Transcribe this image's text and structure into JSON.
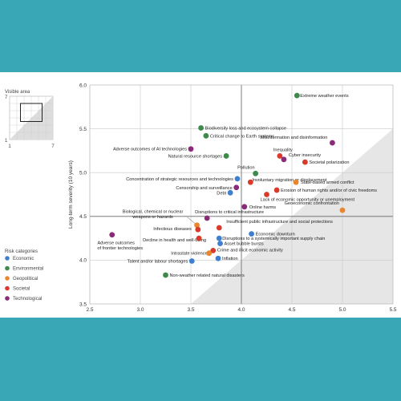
{
  "chart_data": {
    "type": "scatter",
    "title": "",
    "xlabel": "",
    "ylabel": "Long-term severity (10 years)",
    "xlim": [
      2.5,
      5.5
    ],
    "ylim": [
      3.5,
      6.0
    ],
    "xticks": [
      "2.5",
      "3.0",
      "3.5",
      "4.0",
      "4.5",
      "5.0",
      "5.5"
    ],
    "yticks": [
      "3.5",
      "4.0",
      "4.5",
      "5.0",
      "5.5",
      "6.0"
    ],
    "grid": true,
    "legend_position": "left",
    "legend_title": "Risk categories",
    "categories": [
      {
        "key": "economic",
        "name": "Economic",
        "color": "#3f7fcf"
      },
      {
        "key": "environmental",
        "name": "Environmental",
        "color": "#3d8a4a"
      },
      {
        "key": "geopolitical",
        "name": "Geopolitical",
        "color": "#e8872e"
      },
      {
        "key": "societal",
        "name": "Societal",
        "color": "#d93a2b"
      },
      {
        "key": "technological",
        "name": "Technological",
        "color": "#8a2a78"
      }
    ],
    "visible_area": {
      "title": "Visible area",
      "axis_min": "1",
      "axis_max": "7"
    },
    "points": [
      {
        "label": "Extreme weather events",
        "x": 4.55,
        "y": 5.88,
        "category": "environmental"
      },
      {
        "label": "Biodiversity loss and ecosystem collapse",
        "x": 3.6,
        "y": 5.51,
        "category": "environmental"
      },
      {
        "label": "Critical change to Earth systems",
        "x": 3.65,
        "y": 5.42,
        "category": "environmental"
      },
      {
        "label": "Misinformation and disinformation",
        "x": 4.9,
        "y": 5.34,
        "category": "technological"
      },
      {
        "label": "Adverse outcomes of AI technologies",
        "x": 3.5,
        "y": 5.27,
        "category": "technological"
      },
      {
        "label": "Cyber insecurity",
        "x": 4.42,
        "y": 5.15,
        "category": "technological"
      },
      {
        "label": "Inequality",
        "x": 4.38,
        "y": 5.19,
        "category": "societal"
      },
      {
        "label": "Societal polarization",
        "x": 4.63,
        "y": 5.12,
        "category": "societal"
      },
      {
        "label": "Natural resource shortages",
        "x": 3.85,
        "y": 5.19,
        "category": "environmental"
      },
      {
        "label": "Pollution",
        "x": 4.14,
        "y": 4.99,
        "category": "environmental"
      },
      {
        "label": "Involuntary migration or displacement",
        "x": 4.09,
        "y": 4.89,
        "category": "societal"
      },
      {
        "label": "Concentration of strategic resources and technologies",
        "x": 3.96,
        "y": 4.93,
        "category": "economic"
      },
      {
        "label": "State-based armed conflict",
        "x": 4.54,
        "y": 4.89,
        "category": "geopolitical"
      },
      {
        "label": "Censorship and surveillance",
        "x": 3.95,
        "y": 4.83,
        "category": "technological"
      },
      {
        "label": "Erosion of human rights and/or of civic freedoms",
        "x": 4.35,
        "y": 4.8,
        "category": "societal"
      },
      {
        "label": "Debt",
        "x": 3.89,
        "y": 4.77,
        "category": "economic"
      },
      {
        "label": "Lack of economic opportunity or unemployment",
        "x": 4.25,
        "y": 4.75,
        "category": "societal"
      },
      {
        "label": "Geoeconomic confrontation",
        "x": 5.0,
        "y": 4.57,
        "category": "geopolitical"
      },
      {
        "label": "Online harms",
        "x": 4.03,
        "y": 4.61,
        "category": "technological"
      },
      {
        "label": "Disruptions to critical infrastructure",
        "x": 3.66,
        "y": 4.48,
        "category": "technological"
      },
      {
        "label": "Biological, chemical or nuclear weapons or hazards",
        "x": 3.56,
        "y": 4.4,
        "category": "geopolitical"
      },
      {
        "label": "Insufficient public infrastructure and social protections",
        "x": 3.78,
        "y": 4.37,
        "category": "societal"
      },
      {
        "label": "Infectious diseases",
        "x": 3.57,
        "y": 4.35,
        "category": "societal"
      },
      {
        "label": "Economic downturn",
        "x": 4.1,
        "y": 4.3,
        "category": "economic"
      },
      {
        "label": "Adverse outcomes of frontier technologies",
        "x": 2.72,
        "y": 4.29,
        "category": "technological"
      },
      {
        "label": "Decline in health and well-being",
        "x": 3.58,
        "y": 4.25,
        "category": "societal"
      },
      {
        "label": "Disruptions to a systemically important supply chain",
        "x": 3.78,
        "y": 4.25,
        "category": "economic"
      },
      {
        "label": "Asset bubble bursts",
        "x": 3.79,
        "y": 4.19,
        "category": "economic"
      },
      {
        "label": "Crime and illicit economic activity",
        "x": 3.72,
        "y": 4.11,
        "category": "societal"
      },
      {
        "label": "Intrastate violence",
        "x": 3.68,
        "y": 4.08,
        "category": "geopolitical"
      },
      {
        "label": "Inflation",
        "x": 3.77,
        "y": 4.02,
        "category": "economic"
      },
      {
        "label": "Talent and/or labour shortages",
        "x": 3.51,
        "y": 3.99,
        "category": "economic"
      },
      {
        "label": "Non-weather related natural disasters",
        "x": 3.25,
        "y": 3.83,
        "category": "environmental"
      }
    ]
  }
}
